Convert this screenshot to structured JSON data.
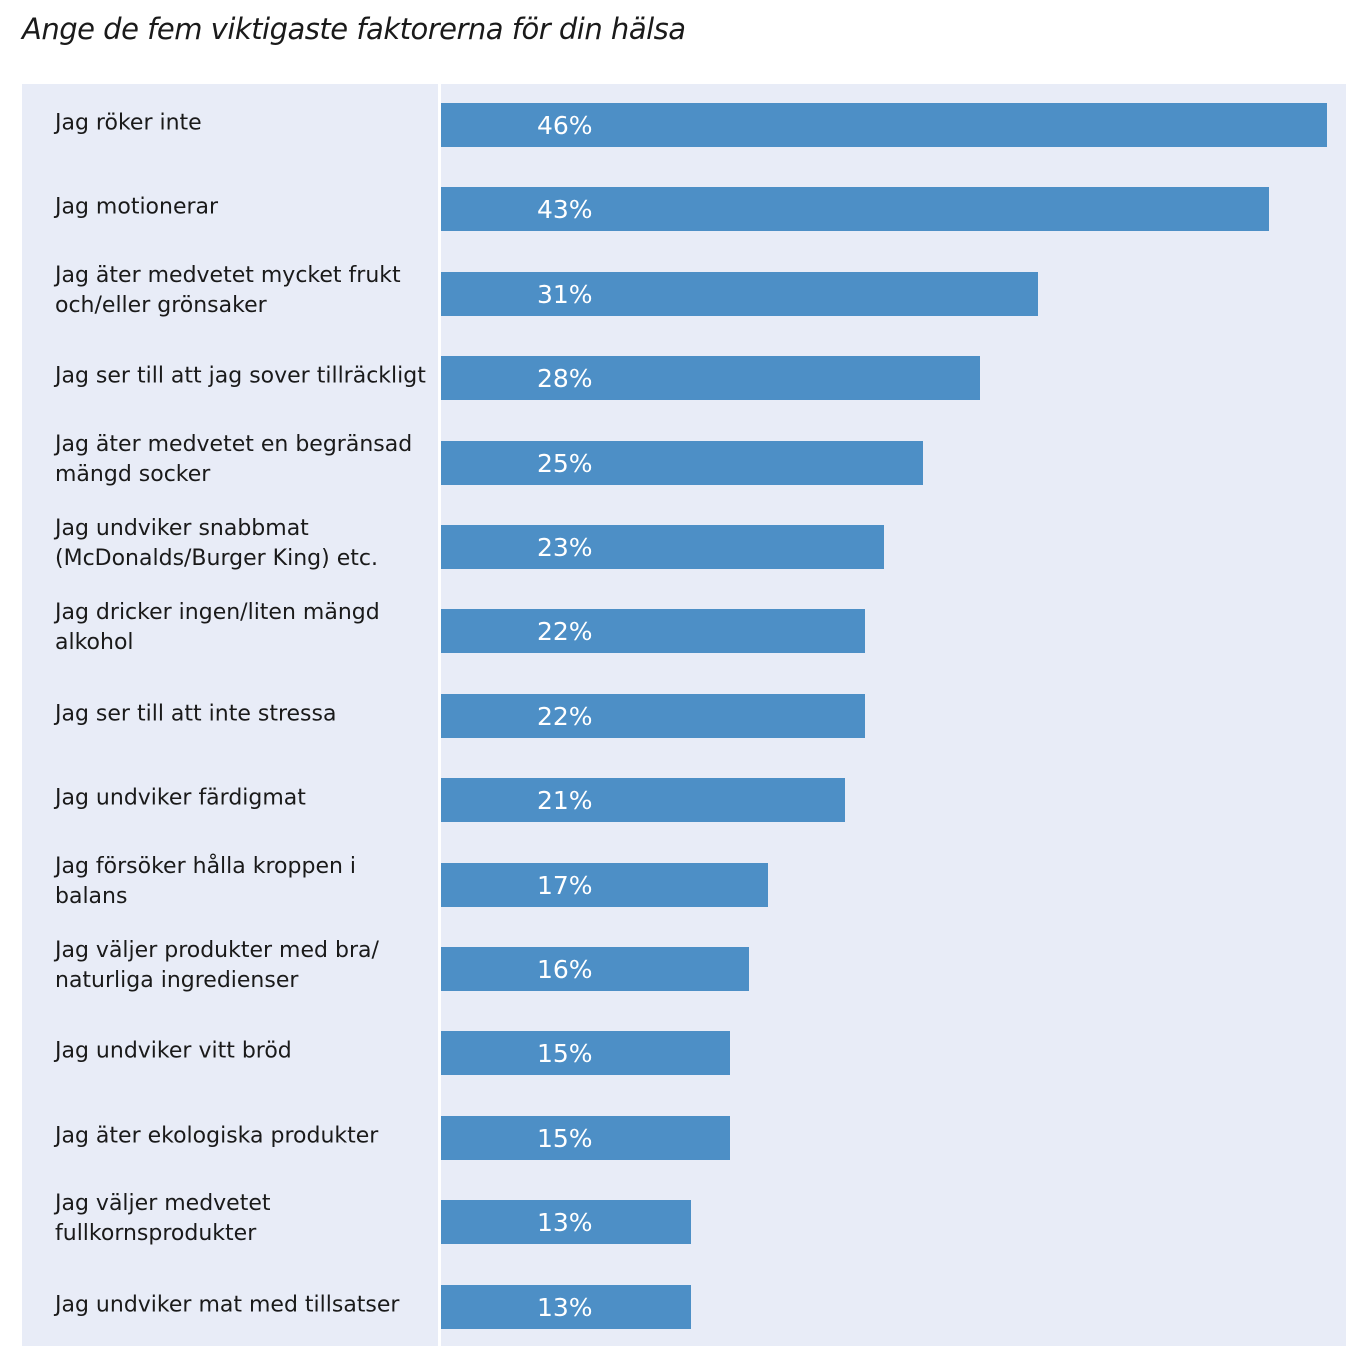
{
  "chart_data": {
    "type": "bar",
    "orientation": "horizontal",
    "title": "Ange de fem viktigaste faktorerna för din hälsa",
    "xlabel": "",
    "ylabel": "",
    "xlim": [
      0,
      46
    ],
    "grid": false,
    "bar_color": "#4d8fc6",
    "background_color": "#e8ecf7",
    "categories": [
      "Jag röker inte",
      "Jag motionerar",
      "Jag äter medvetet mycket frukt och/eller grönsaker",
      "Jag ser till att jag sover tillräckligt",
      "Jag äter medvetet en begränsad mängd socker",
      "Jag undviker snabbmat (McDonalds/Burger King) etc.",
      "Jag dricker ingen/liten mängd alkohol",
      "Jag ser till att inte stressa",
      "Jag undviker färdigmat",
      "Jag försöker hålla kroppen i balans",
      "Jag väljer produkter med bra/ naturliga ingredienser",
      "Jag undviker vitt bröd",
      "Jag äter ekologiska produkter",
      "Jag väljer medvetet fullkornsprodukter",
      "Jag undviker mat med tillsatser"
    ],
    "values": [
      46,
      43,
      31,
      28,
      25,
      23,
      22,
      22,
      21,
      17,
      16,
      15,
      15,
      13,
      13
    ],
    "value_labels": [
      "46%",
      "43%",
      "31%",
      "28%",
      "25%",
      "23%",
      "22%",
      "22%",
      "21%",
      "17%",
      "16%",
      "15%",
      "15%",
      "13%",
      "13%"
    ]
  }
}
